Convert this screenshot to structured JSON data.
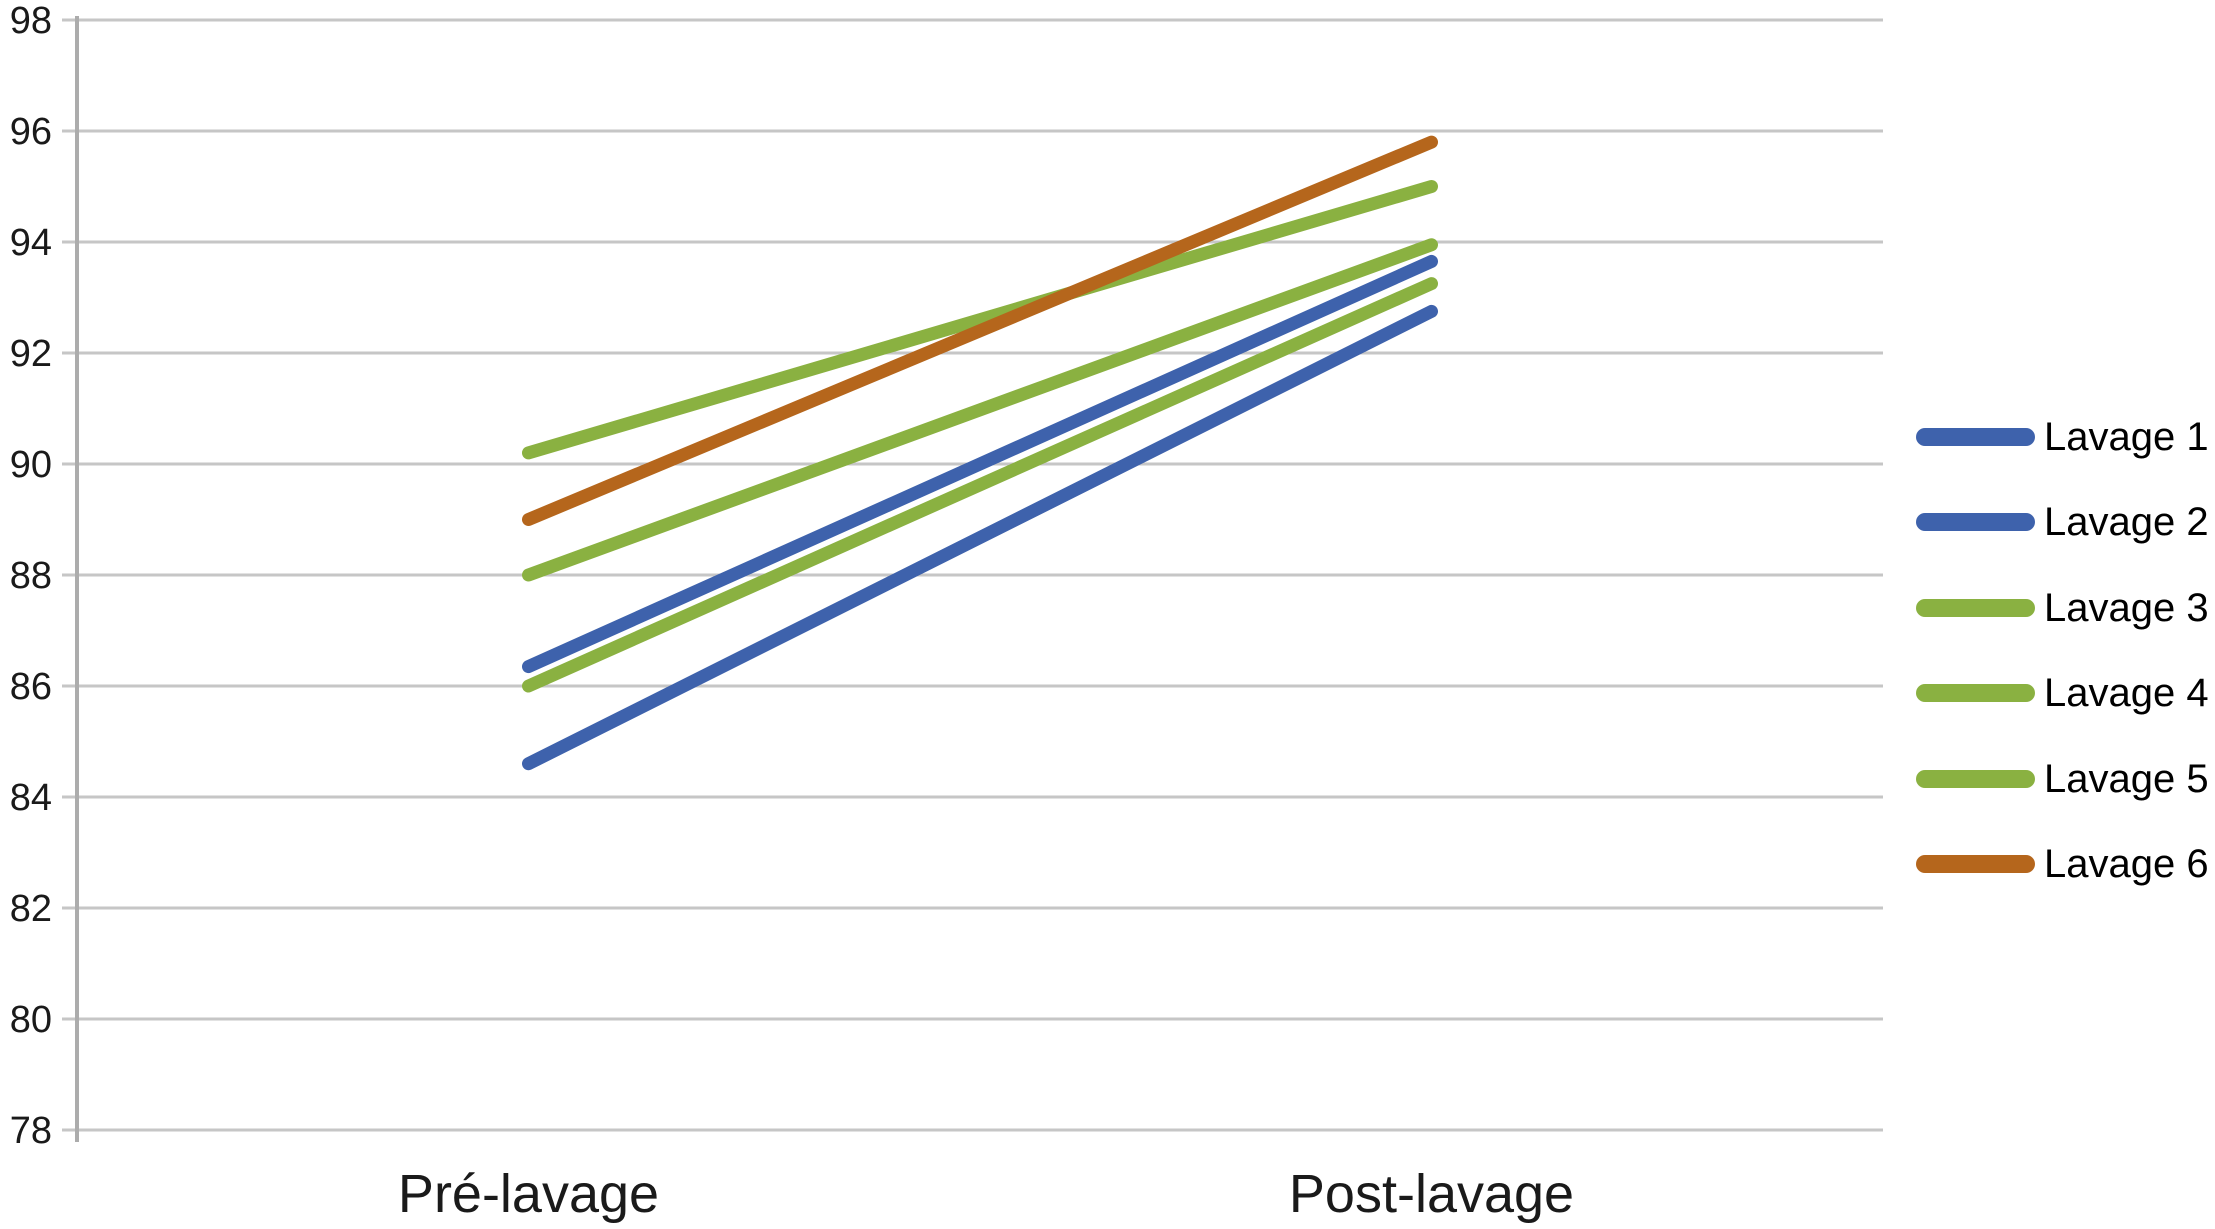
{
  "chart_data": {
    "type": "line",
    "categories": [
      "Pré-lavage",
      "Post-lavage"
    ],
    "series": [
      {
        "name": "Lavage 1",
        "color": "#3E62AC",
        "values": [
          86.35,
          93.65
        ]
      },
      {
        "name": "Lavage 2",
        "color": "#3E62AC",
        "values": [
          84.6,
          92.75
        ]
      },
      {
        "name": "Lavage 3",
        "color": "#8AB141",
        "values": [
          90.2,
          95.0
        ]
      },
      {
        "name": "Lavage 4",
        "color": "#8AB141",
        "values": [
          88.0,
          93.95
        ]
      },
      {
        "name": "Lavage 5",
        "color": "#8AB141",
        "values": [
          86.0,
          93.25
        ]
      },
      {
        "name": "Lavage 6",
        "color": "#B5661C",
        "values": [
          89.0,
          95.8
        ]
      }
    ],
    "title": "",
    "xlabel": "",
    "ylabel": "",
    "ylim": [
      78,
      98
    ],
    "yticks": [
      78,
      80,
      82,
      84,
      86,
      88,
      90,
      92,
      94,
      96,
      98
    ],
    "grid": true,
    "legend_position": "right"
  },
  "colors": {
    "gridline": "#C6C6C6",
    "axis": "#ACACAC",
    "text": "#1A1A1A"
  }
}
